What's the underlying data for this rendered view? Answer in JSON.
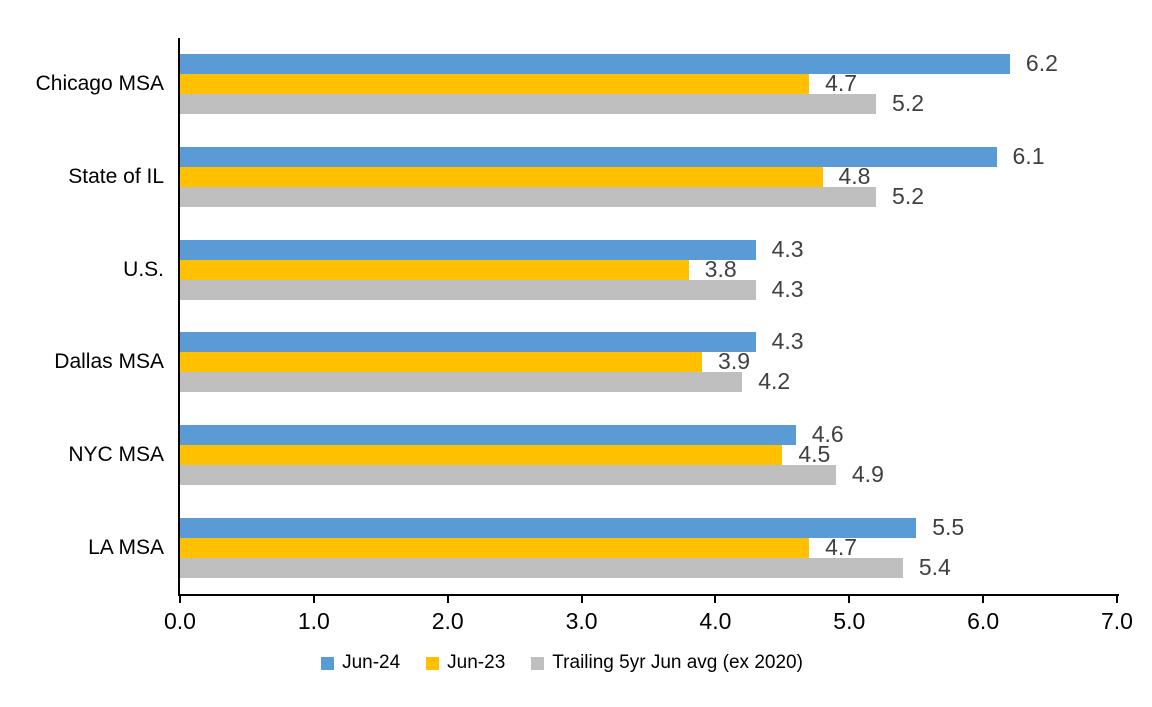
{
  "chart_data": {
    "type": "bar",
    "orientation": "horizontal",
    "categories": [
      "Chicago MSA",
      "State of IL",
      "U.S.",
      "Dallas MSA",
      "NYC MSA",
      "LA MSA"
    ],
    "series": [
      {
        "name": "Jun-24",
        "color": "#5B9BD5",
        "values": [
          6.2,
          6.1,
          4.3,
          4.3,
          4.6,
          5.5
        ]
      },
      {
        "name": "Jun-23",
        "color": "#FFC000",
        "values": [
          4.7,
          4.8,
          3.8,
          3.9,
          4.5,
          4.7
        ]
      },
      {
        "name": "Trailing 5yr Jun avg (ex 2020)",
        "color": "#BFBFBF",
        "values": [
          5.2,
          5.2,
          4.3,
          4.2,
          4.9,
          5.4
        ]
      }
    ],
    "xlim": [
      0,
      7
    ],
    "x_tick_labels": [
      "0.0",
      "1.0",
      "2.0",
      "3.0",
      "4.0",
      "5.0",
      "6.0",
      "7.0"
    ],
    "value_labels_shown": true,
    "value_label_decimals": 1,
    "grid": false,
    "legend_position": "bottom",
    "colors": {
      "axis": "#000000",
      "text": "#000000",
      "value_label": "#404040",
      "background": "#FFFFFF"
    }
  }
}
